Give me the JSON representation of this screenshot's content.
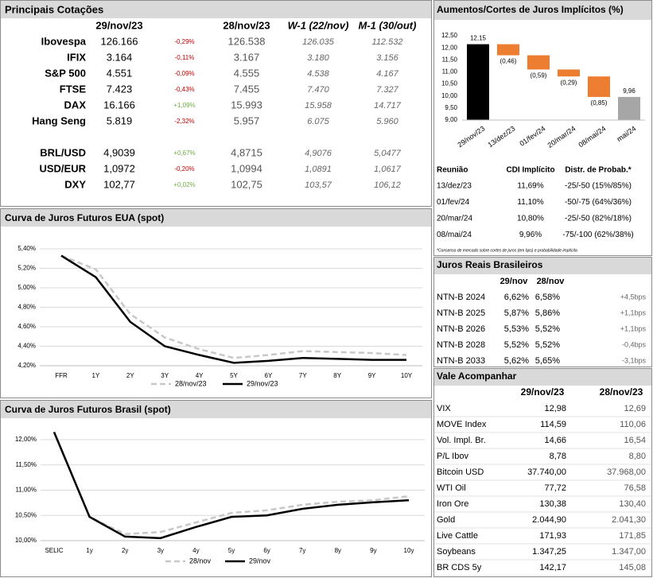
{
  "quotes": {
    "title": "Principais Cotações",
    "columns": [
      "29/nov/23",
      "28/nov/23",
      "W-1 (22/nov)",
      "M-1 (30/out)"
    ],
    "groups": [
      [
        [
          "Ibovespa",
          "126.166",
          "-0,29%",
          "126.538",
          "126.035",
          "112.532"
        ],
        [
          "IFIX",
          "3.164",
          "-0,11%",
          "3.167",
          "3.180",
          "3.156"
        ],
        [
          "S&P 500",
          "4.551",
          "-0,09%",
          "4.555",
          "4.538",
          "4.167"
        ],
        [
          "FTSE",
          "7.423",
          "-0,43%",
          "7.455",
          "7.470",
          "7.327"
        ],
        [
          "DAX",
          "16.166",
          "+1,09%",
          "15.993",
          "15.958",
          "14.717"
        ],
        [
          "Hang Seng",
          "5.819",
          "-2,32%",
          "5.957",
          "6.075",
          "5.960"
        ]
      ],
      [
        [
          "BRL/USD",
          "4,9039",
          "+0,67%",
          "4,8715",
          "4,9076",
          "5,0477"
        ],
        [
          "USD/EUR",
          "1,0972",
          "-0,20%",
          "1,0994",
          "1,0891",
          "1,0617"
        ],
        [
          "DXY",
          "102,77",
          "+0,02%",
          "102,75",
          "103,57",
          "106,12"
        ]
      ]
    ]
  },
  "chart_data": [
    {
      "type": "line",
      "title": "Curva de Juros Futuros EUA (spot)",
      "categories": [
        "FFR",
        "1Y",
        "2Y",
        "3Y",
        "4Y",
        "5Y",
        "6Y",
        "7Y",
        "8Y",
        "9Y",
        "10Y"
      ],
      "series": [
        {
          "name": "28/nov/23",
          "color": "#c8c8c8",
          "style": "dashed",
          "values": [
            5.33,
            5.19,
            4.73,
            4.49,
            4.37,
            4.28,
            4.31,
            4.35,
            4.34,
            4.33,
            4.31
          ]
        },
        {
          "name": "29/nov/23",
          "color": "#000000",
          "style": "solid",
          "values": [
            5.33,
            5.11,
            4.65,
            4.4,
            4.31,
            4.23,
            4.25,
            4.28,
            4.27,
            4.26,
            4.26
          ]
        }
      ],
      "ylim": [
        4.2,
        5.4
      ],
      "yticks": [
        {
          "value": 4.2,
          "label": "4,20%"
        },
        {
          "value": 4.4,
          "label": "4,40%"
        },
        {
          "value": 4.6,
          "label": "4,60%"
        },
        {
          "value": 4.8,
          "label": "4,80%"
        },
        {
          "value": 5.0,
          "label": "5,00%"
        },
        {
          "value": 5.2,
          "label": "5,20%"
        },
        {
          "value": 5.4,
          "label": "5,40%"
        }
      ],
      "grid": true
    },
    {
      "type": "line",
      "title": "Curva de Juros Futuros Brasil (spot)",
      "categories": [
        "SELIC",
        "1y",
        "2y",
        "3y",
        "4y",
        "5y",
        "6y",
        "7y",
        "8y",
        "9y",
        "10y"
      ],
      "series": [
        {
          "name": "28/nov",
          "color": "#c8c8c8",
          "style": "dashed",
          "values": [
            12.15,
            10.47,
            10.13,
            10.17,
            10.36,
            10.55,
            10.6,
            10.71,
            10.77,
            10.8,
            10.88
          ]
        },
        {
          "name": "29/nov",
          "color": "#000000",
          "style": "solid",
          "values": [
            12.15,
            10.47,
            10.08,
            10.05,
            10.27,
            10.47,
            10.5,
            10.63,
            10.71,
            10.76,
            10.8
          ]
        }
      ],
      "ylim": [
        10,
        12
      ],
      "yticks": [
        {
          "value": 10,
          "label": "10,00%"
        },
        {
          "value": 10.5,
          "label": "10,50%"
        },
        {
          "value": 11,
          "label": "11,00%"
        },
        {
          "value": 11.5,
          "label": "11,50%"
        },
        {
          "value": 12,
          "label": "12,00%"
        }
      ],
      "grid": true
    },
    {
      "type": "waterfall",
      "title": "Aumentos/Cortes de Juros Implícitos (%)",
      "categories": [
        "29/nov/23",
        "13/dez/23",
        "01/fev/24",
        "20/mar/24",
        "08/mai/24",
        "mai/24"
      ],
      "values": [
        12.15,
        -0.46,
        -0.59,
        -0.29,
        -0.85,
        9.96
      ],
      "value_labels": [
        "12,15",
        "(0,46)",
        "(0,59)",
        "(0,29)",
        "(0,85)",
        "9,96"
      ],
      "colors": [
        "#000000",
        "#ed7d31",
        "#ed7d31",
        "#ed7d31",
        "#ed7d31",
        "#a6a6a6"
      ],
      "ylim": [
        9,
        12.5
      ],
      "yticks": [
        {
          "value": 9,
          "label": "9,00"
        },
        {
          "value": 9.5,
          "label": "9,50"
        },
        {
          "value": 10,
          "label": "10,00"
        },
        {
          "value": 10.5,
          "label": "10,50"
        },
        {
          "value": 11,
          "label": "11,00"
        },
        {
          "value": 11.5,
          "label": "11,50"
        },
        {
          "value": 12,
          "label": "12,00"
        },
        {
          "value": 12.5,
          "label": "12,50"
        }
      ]
    }
  ],
  "implied": {
    "columns": [
      "Reunião",
      "CDI Implícito",
      "Distr. de Probab.*"
    ],
    "rows": [
      [
        "13/dez/23",
        "11,69%",
        "-25/-50 (15%/85%)"
      ],
      [
        "01/fev/24",
        "11,10%",
        "-50/-75 (64%/36%)"
      ],
      [
        "20/mar/24",
        "10,80%",
        "-25/-50 (82%/18%)"
      ],
      [
        "08/mai/24",
        "9,96%",
        "-75/-100 (62%/38%)"
      ]
    ],
    "note": "*Consenso de mercado sobre cortes de juros (em bps) e probabilidade implícita"
  },
  "juros_reais": {
    "title": "Juros Reais Brasileiros",
    "columns": [
      "29/nov",
      "28/nov"
    ],
    "rows": [
      [
        "NTN-B 2024",
        "6,62%",
        "6,58%",
        "+4,5bps"
      ],
      [
        "NTN-B 2025",
        "5,87%",
        "5,86%",
        "+1,1bps"
      ],
      [
        "NTN-B 2026",
        "5,53%",
        "5,52%",
        "+1,1bps"
      ],
      [
        "NTN-B 2028",
        "5,52%",
        "5,52%",
        "-0,4bps"
      ],
      [
        "NTN-B 2033",
        "5,62%",
        "5,65%",
        "-3,1bps"
      ]
    ]
  },
  "vale": {
    "title": "Vale Acompanhar",
    "columns": [
      "29/nov/23",
      "28/nov/23"
    ],
    "rows": [
      [
        "VIX",
        "12,98",
        "12,69"
      ],
      [
        "MOVE Index",
        "114,59",
        "110,06"
      ],
      [
        "Vol. Impl. Br.",
        "14,66",
        "16,54"
      ],
      [
        "P/L Ibov",
        "8,78",
        "8,80"
      ],
      [
        "Bitcoin USD",
        "37.740,00",
        "37.968,00"
      ],
      [
        "WTI Oil",
        "77,72",
        "76,58"
      ],
      [
        "Iron Ore",
        "130,38",
        "130,40"
      ],
      [
        "Gold",
        "2.044,90",
        "2.041,30"
      ],
      [
        "Live Cattle",
        "171,93",
        "171,85"
      ],
      [
        "Soybeans",
        "1.347,25",
        "1.347,00"
      ],
      [
        "BR CDS 5y",
        "142,17",
        "145,08"
      ]
    ]
  }
}
